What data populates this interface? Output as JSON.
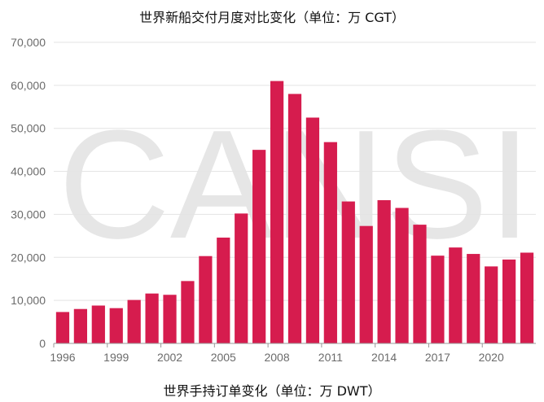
{
  "chart_data": {
    "type": "bar",
    "title": "世界新船交付月度对比变化（单位：万 CGT）",
    "watermark": "CANSI",
    "color": "#d61c4e",
    "xlabel": "",
    "ylabel": "",
    "ylim": [
      0,
      70000
    ],
    "yticks": [
      "0",
      "10,000",
      "20,000",
      "30,000",
      "40,000",
      "50,000",
      "60,000",
      "70,000"
    ],
    "xtick_labels": [
      "1996",
      "1999",
      "2002",
      "2005",
      "2008",
      "2011",
      "2014",
      "2017",
      "2020"
    ],
    "categories": [
      "1996",
      "1997",
      "1998",
      "1999",
      "2000",
      "2001",
      "2002",
      "2003",
      "2004",
      "2005",
      "2006",
      "2007",
      "2008",
      "2009",
      "2010",
      "2011",
      "2012",
      "2013",
      "2014",
      "2015",
      "2016",
      "2017",
      "2018",
      "2019",
      "2020",
      "2021",
      "2022"
    ],
    "values": [
      7300,
      8000,
      8800,
      8200,
      10100,
      11600,
      11300,
      14500,
      20300,
      24600,
      30200,
      45000,
      61000,
      58000,
      52500,
      46800,
      33000,
      27300,
      33300,
      31500,
      27600,
      20400,
      22300,
      20800,
      17900,
      19500,
      21100
    ],
    "grid": true
  },
  "caption": "世界手持订单变化（单位：万 DWT）"
}
